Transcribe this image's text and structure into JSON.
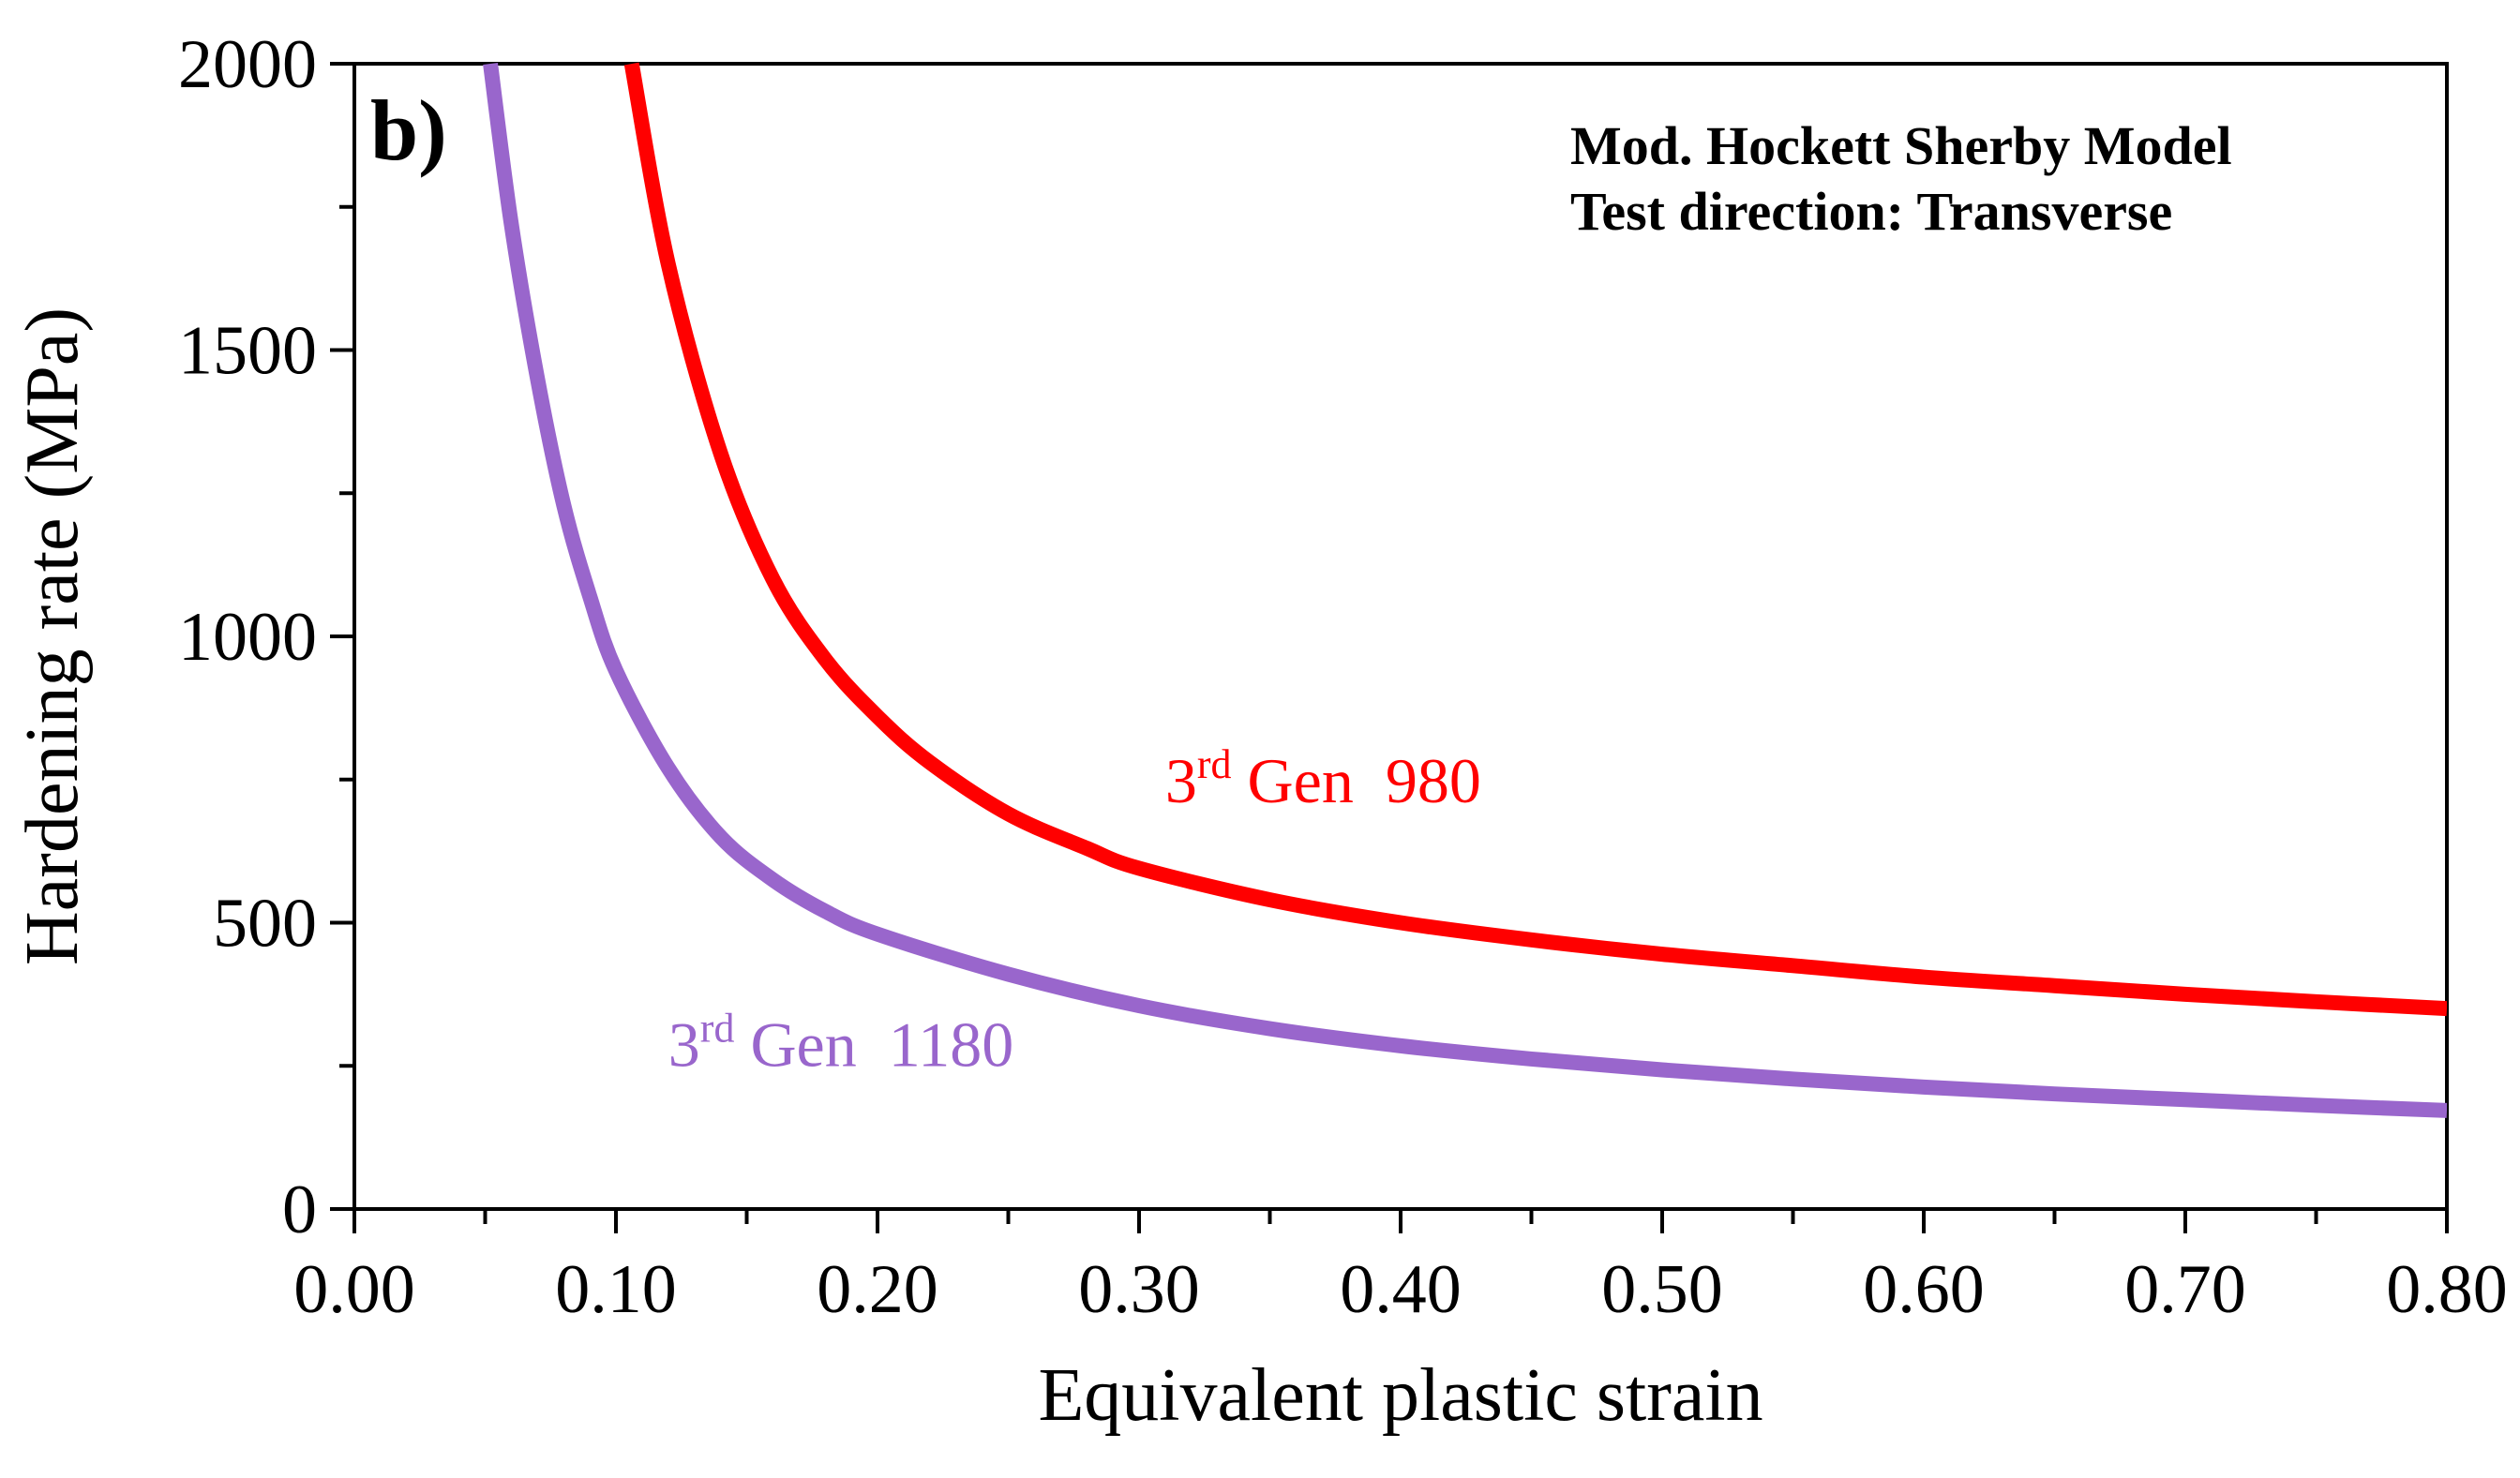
{
  "chart_data": {
    "type": "line",
    "panel_label": "b)",
    "annotation": [
      "Mod. Hockett Sherby Model",
      "Test direction: Transverse"
    ],
    "xlabel": "Equivalent plastic strain",
    "ylabel": "Hardening rate (MPa)",
    "xlim": [
      0,
      0.8
    ],
    "ylim": [
      0,
      2000
    ],
    "xticks": [
      0.0,
      0.1,
      0.2,
      0.3,
      0.4,
      0.5,
      0.6,
      0.7,
      0.8
    ],
    "xtick_labels": [
      "0.00",
      "0.10",
      "0.20",
      "0.30",
      "0.40",
      "0.50",
      "0.60",
      "0.70",
      "0.80"
    ],
    "x_minor_step": 0.05,
    "yticks": [
      0,
      500,
      1000,
      1500,
      2000
    ],
    "ytick_labels": [
      "0",
      "500",
      "1000",
      "1500",
      "2000"
    ],
    "y_minor_step": 250,
    "grid": false,
    "series": [
      {
        "name": "3rd Gen 980",
        "label_base": "3",
        "label_sup": "rd",
        "label_rest": " Gen  980",
        "color": "#ff0000",
        "label_at": [
          0.31,
          710
        ],
        "x": [
          0.106,
          0.12,
          0.14,
          0.16,
          0.18,
          0.2,
          0.22,
          0.25,
          0.28,
          0.3,
          0.35,
          0.4,
          0.45,
          0.5,
          0.55,
          0.6,
          0.65,
          0.7,
          0.75,
          0.8
        ],
        "y": [
          2000,
          1650,
          1320,
          1100,
          960,
          860,
          780,
          690,
          630,
          595,
          540,
          500,
          470,
          445,
          425,
          405,
          390,
          375,
          362,
          350
        ]
      },
      {
        "name": "3rd Gen 1180",
        "label_base": "3",
        "label_sup": "rd",
        "label_rest": " Gen  1180",
        "color": "#9966cc",
        "label_at": [
          0.12,
          250
        ],
        "x": [
          0.052,
          0.06,
          0.07,
          0.08,
          0.09,
          0.1,
          0.12,
          0.14,
          0.16,
          0.18,
          0.2,
          0.25,
          0.3,
          0.35,
          0.4,
          0.45,
          0.5,
          0.55,
          0.6,
          0.65,
          0.7,
          0.75,
          0.8
        ],
        "y": [
          2000,
          1720,
          1450,
          1230,
          1070,
          940,
          770,
          650,
          575,
          520,
          480,
          410,
          355,
          315,
          285,
          262,
          243,
          227,
          213,
          201,
          191,
          181,
          172
        ]
      }
    ]
  }
}
